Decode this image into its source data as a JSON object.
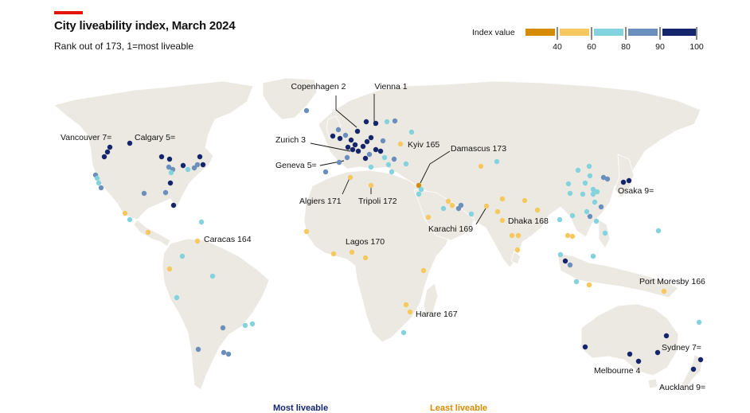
{
  "header": {
    "title": "City liveability index, March 2024",
    "subtitle": "Rank out of 173, 1=most liveable"
  },
  "legend": {
    "title": "Index value",
    "ticks": [
      "40",
      "60",
      "80",
      "90",
      "100"
    ],
    "colors": [
      "#d68c00",
      "#f7c85f",
      "#83d3de",
      "#6b8fbd",
      "#15256b"
    ]
  },
  "footer": {
    "most_liveable": "Most liveable",
    "least_liveable": "Least liveable"
  },
  "colors": {
    "land": "#ece9e2",
    "ocean": "#ffffff",
    "accent": "#e3120b"
  },
  "labels": [
    {
      "id": "vienna",
      "text": "Vienna 1"
    },
    {
      "id": "copenhagen",
      "text": "Copenhagen 2"
    },
    {
      "id": "zurich",
      "text": "Zurich 3"
    },
    {
      "id": "melbourne",
      "text": "Melbourne 4"
    },
    {
      "id": "calgary",
      "text": "Calgary 5="
    },
    {
      "id": "geneva",
      "text": "Geneva 5="
    },
    {
      "id": "sydney",
      "text": "Sydney 7="
    },
    {
      "id": "vancouver",
      "text": "Vancouver 7="
    },
    {
      "id": "osaka",
      "text": "Osaka 9="
    },
    {
      "id": "auckland",
      "text": "Auckland 9="
    },
    {
      "id": "caracas",
      "text": "Caracas 164"
    },
    {
      "id": "kyiv",
      "text": "Kyiv 165"
    },
    {
      "id": "portmoresby",
      "text": "Port Moresby 166"
    },
    {
      "id": "harare",
      "text": "Harare 167"
    },
    {
      "id": "dhaka",
      "text": "Dhaka 168"
    },
    {
      "id": "karachi",
      "text": "Karachi 169"
    },
    {
      "id": "lagos",
      "text": "Lagos 170"
    },
    {
      "id": "algiers",
      "text": "Algiers 171"
    },
    {
      "id": "tripoli",
      "text": "Tripoli 172"
    },
    {
      "id": "damascus",
      "text": "Damascus 173"
    }
  ]
}
